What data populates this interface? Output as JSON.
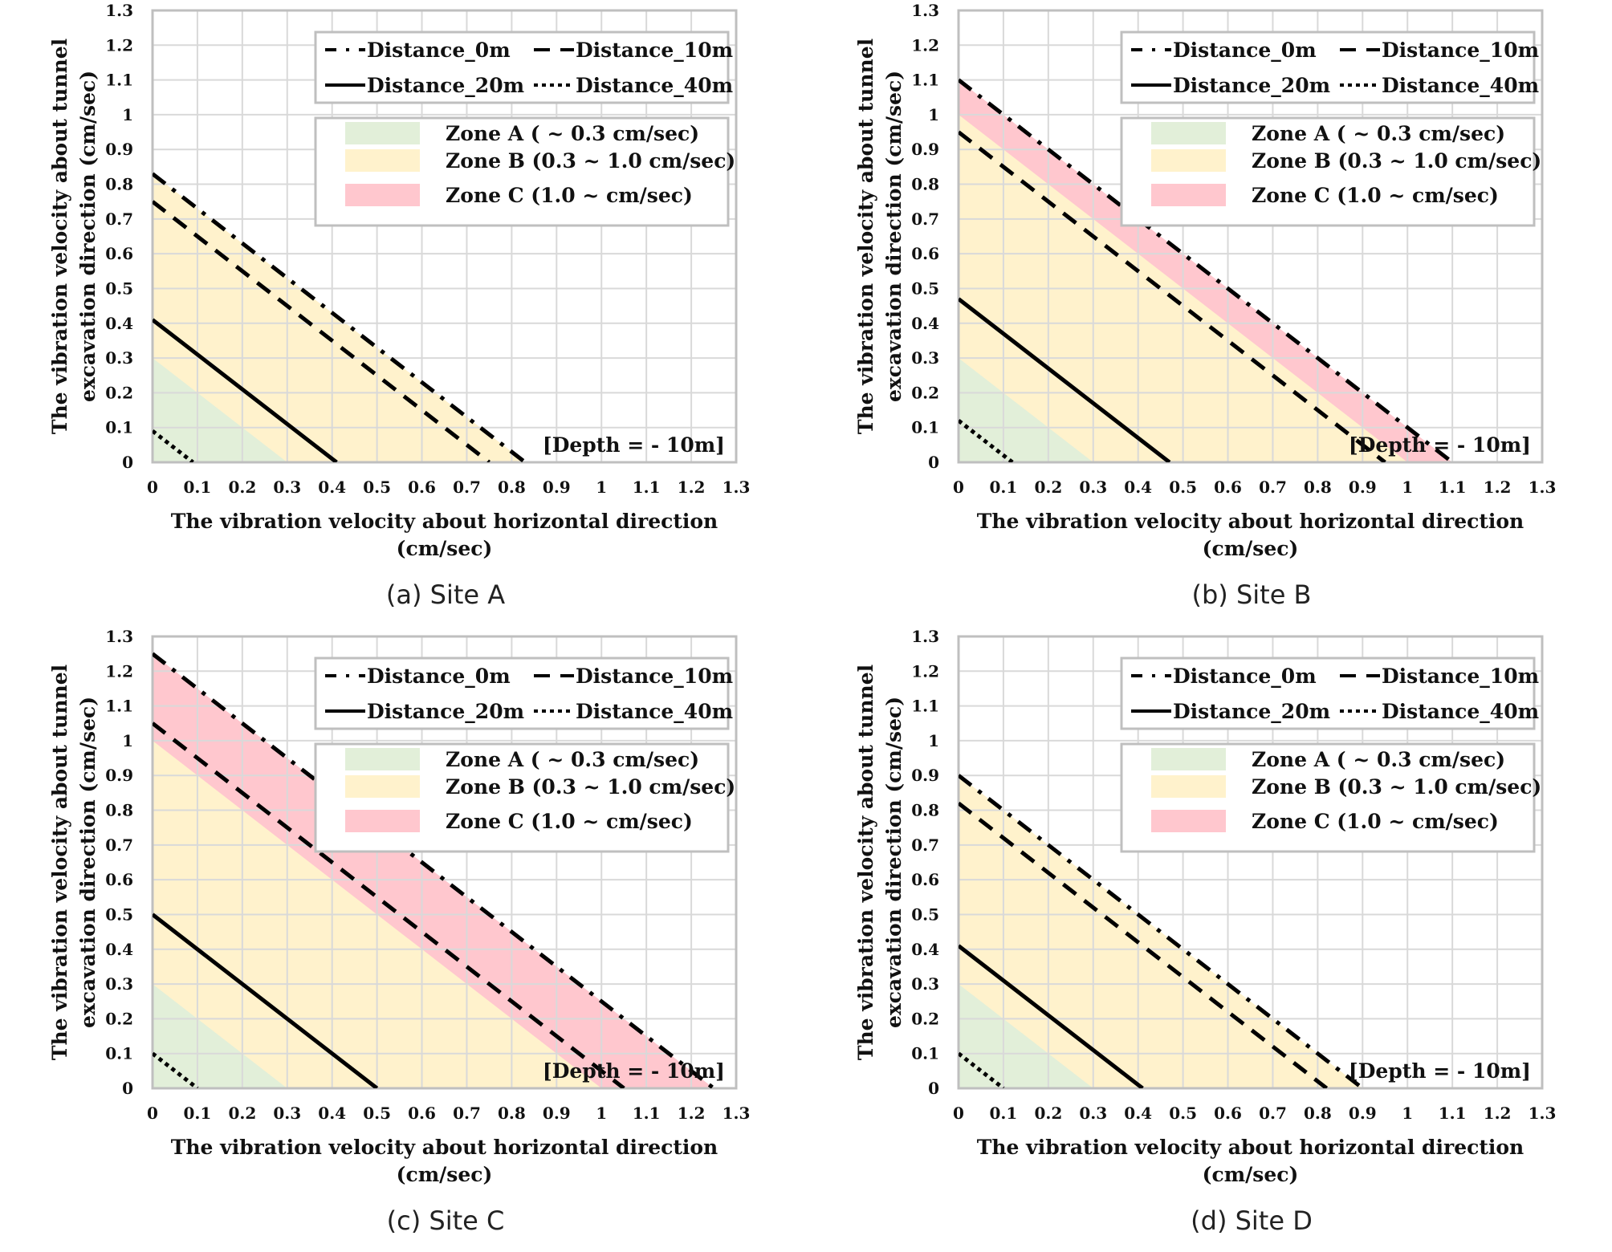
{
  "legend_lines": [
    "Distance_0m",
    "Distance_10m",
    "Distance_20m",
    "Distance_40m"
  ],
  "legend_zones": [
    "Zone A ( ~ 0.3 cm/sec)",
    "Zone B (0.3 ~ 1.0 cm/sec)",
    "Zone C (1.0 ~  cm/sec)"
  ],
  "colors": {
    "zone_a": "#e2efd9",
    "zone_b": "#fff2cc",
    "zone_c": "#ffc7ce",
    "grid": "#d9d9d9",
    "frame": "#bfbfbf",
    "line": "#000000"
  },
  "chart_data": [
    {
      "type": "line",
      "caption": "(a) Site A",
      "xlabel_lines": [
        "The vibration velocity  about horizontal direction",
        "(cm/sec)"
      ],
      "ylabel_lines": [
        "The vibration velocity  about tunnel",
        "excavation direction (cm/sec)"
      ],
      "annotation": "[Depth = - 10m]",
      "xlim": [
        0,
        1.3
      ],
      "ylim": [
        0,
        1.3
      ],
      "ticks": [
        "0",
        "0.1",
        "0.2",
        "0.3",
        "0.4",
        "0.5",
        "0.6",
        "0.7",
        "0.8",
        "0.9",
        "1",
        "1.1",
        "1.2",
        "1.3"
      ],
      "grid": true,
      "legend_position": "top-right",
      "zones": [
        {
          "name": "Zone A",
          "min": 0,
          "max": 0.3
        },
        {
          "name": "Zone B",
          "min": 0.3,
          "max": 1.0
        },
        {
          "name": "Zone C",
          "min": 1.0
        }
      ],
      "series": [
        {
          "name": "Distance_0m",
          "style": "dash-dot",
          "x": [
            0,
            0.83
          ],
          "y": [
            0.83,
            0
          ]
        },
        {
          "name": "Distance_10m",
          "style": "dashed",
          "x": [
            0,
            0.75
          ],
          "y": [
            0.75,
            0
          ]
        },
        {
          "name": "Distance_20m",
          "style": "solid",
          "x": [
            0,
            0.41
          ],
          "y": [
            0.41,
            0
          ]
        },
        {
          "name": "Distance_40m",
          "style": "dotted",
          "x": [
            0,
            0.09
          ],
          "y": [
            0.09,
            0
          ]
        }
      ]
    },
    {
      "type": "line",
      "caption": "(b) Site B",
      "xlabel_lines": [
        "The vibration velocity  about horizontal direction",
        "(cm/sec)"
      ],
      "ylabel_lines": [
        "The vibration velocity  about tunnel",
        "excavation direction (cm/sec)"
      ],
      "annotation": "[Depth = - 10m]",
      "xlim": [
        0,
        1.3
      ],
      "ylim": [
        0,
        1.3
      ],
      "ticks": [
        "0",
        "0.1",
        "0.2",
        "0.3",
        "0.4",
        "0.5",
        "0.6",
        "0.7",
        "0.8",
        "0.9",
        "1",
        "1.1",
        "1.2",
        "1.3"
      ],
      "grid": true,
      "legend_position": "top-right",
      "zones": [
        {
          "name": "Zone A",
          "min": 0,
          "max": 0.3
        },
        {
          "name": "Zone B",
          "min": 0.3,
          "max": 1.0
        },
        {
          "name": "Zone C",
          "min": 1.0
        }
      ],
      "series": [
        {
          "name": "Distance_0m",
          "style": "dash-dot",
          "x": [
            0,
            1.1
          ],
          "y": [
            1.1,
            0
          ]
        },
        {
          "name": "Distance_10m",
          "style": "dashed",
          "x": [
            0,
            0.95
          ],
          "y": [
            0.95,
            0
          ]
        },
        {
          "name": "Distance_20m",
          "style": "solid",
          "x": [
            0,
            0.47
          ],
          "y": [
            0.47,
            0
          ]
        },
        {
          "name": "Distance_40m",
          "style": "dotted",
          "x": [
            0,
            0.12
          ],
          "y": [
            0.12,
            0
          ]
        }
      ]
    },
    {
      "type": "line",
      "caption": "(c) Site C",
      "xlabel_lines": [
        "The vibration velocity  about horizontal direction",
        "(cm/sec)"
      ],
      "ylabel_lines": [
        "The vibration velocity  about tunnel",
        "excavation direction (cm/sec)"
      ],
      "annotation": "[Depth = - 10m]",
      "xlim": [
        0,
        1.3
      ],
      "ylim": [
        0,
        1.3
      ],
      "ticks": [
        "0",
        "0.1",
        "0.2",
        "0.3",
        "0.4",
        "0.5",
        "0.6",
        "0.7",
        "0.8",
        "0.9",
        "1",
        "1.1",
        "1.2",
        "1.3"
      ],
      "grid": true,
      "legend_position": "top-right",
      "zones": [
        {
          "name": "Zone A",
          "min": 0,
          "max": 0.3
        },
        {
          "name": "Zone B",
          "min": 0.3,
          "max": 1.0
        },
        {
          "name": "Zone C",
          "min": 1.0
        }
      ],
      "series": [
        {
          "name": "Distance_0m",
          "style": "dash-dot",
          "x": [
            0,
            1.25
          ],
          "y": [
            1.25,
            0
          ]
        },
        {
          "name": "Distance_10m",
          "style": "dashed",
          "x": [
            0,
            1.05
          ],
          "y": [
            1.05,
            0
          ]
        },
        {
          "name": "Distance_20m",
          "style": "solid",
          "x": [
            0,
            0.5
          ],
          "y": [
            0.5,
            0
          ]
        },
        {
          "name": "Distance_40m",
          "style": "dotted",
          "x": [
            0,
            0.1
          ],
          "y": [
            0.1,
            0
          ]
        }
      ]
    },
    {
      "type": "line",
      "caption": "(d) Site D",
      "xlabel_lines": [
        "The vibration velocity  about horizontal direction",
        "(cm/sec)"
      ],
      "ylabel_lines": [
        "The vibration velocity  about tunnel",
        "excavation direction (cm/sec)"
      ],
      "annotation": "[Depth = - 10m]",
      "xlim": [
        0,
        1.3
      ],
      "ylim": [
        0,
        1.3
      ],
      "ticks": [
        "0",
        "0.1",
        "0.2",
        "0.3",
        "0.4",
        "0.5",
        "0.6",
        "0.7",
        "0.8",
        "0.9",
        "1",
        "1.1",
        "1.2",
        "1.3"
      ],
      "grid": true,
      "legend_position": "top-right",
      "zones": [
        {
          "name": "Zone A",
          "min": 0,
          "max": 0.3
        },
        {
          "name": "Zone B",
          "min": 0.3,
          "max": 1.0
        },
        {
          "name": "Zone C",
          "min": 1.0
        }
      ],
      "series": [
        {
          "name": "Distance_0m",
          "style": "dash-dot",
          "x": [
            0,
            0.9
          ],
          "y": [
            0.9,
            0
          ]
        },
        {
          "name": "Distance_10m",
          "style": "dashed",
          "x": [
            0,
            0.82
          ],
          "y": [
            0.82,
            0
          ]
        },
        {
          "name": "Distance_20m",
          "style": "solid",
          "x": [
            0,
            0.41
          ],
          "y": [
            0.41,
            0
          ]
        },
        {
          "name": "Distance_40m",
          "style": "dotted",
          "x": [
            0,
            0.1
          ],
          "y": [
            0.1,
            0
          ]
        }
      ]
    }
  ]
}
